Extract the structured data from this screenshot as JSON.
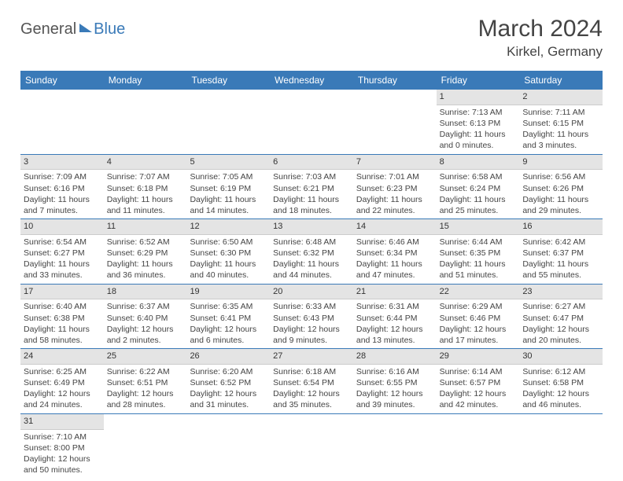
{
  "logo": {
    "text1": "General",
    "text2": "Blue"
  },
  "title": "March 2024",
  "location": "Kirkel, Germany",
  "theme": {
    "header_bg": "#3a7ab8",
    "header_text": "#ffffff",
    "daynum_bg": "#e4e4e4",
    "text": "#444444",
    "border": "#3a7ab8"
  },
  "day_labels": [
    "Sunday",
    "Monday",
    "Tuesday",
    "Wednesday",
    "Thursday",
    "Friday",
    "Saturday"
  ],
  "weeks": [
    [
      null,
      null,
      null,
      null,
      null,
      {
        "n": "1",
        "sr": "Sunrise: 7:13 AM",
        "ss": "Sunset: 6:13 PM",
        "dl": "Daylight: 11 hours and 0 minutes."
      },
      {
        "n": "2",
        "sr": "Sunrise: 7:11 AM",
        "ss": "Sunset: 6:15 PM",
        "dl": "Daylight: 11 hours and 3 minutes."
      }
    ],
    [
      {
        "n": "3",
        "sr": "Sunrise: 7:09 AM",
        "ss": "Sunset: 6:16 PM",
        "dl": "Daylight: 11 hours and 7 minutes."
      },
      {
        "n": "4",
        "sr": "Sunrise: 7:07 AM",
        "ss": "Sunset: 6:18 PM",
        "dl": "Daylight: 11 hours and 11 minutes."
      },
      {
        "n": "5",
        "sr": "Sunrise: 7:05 AM",
        "ss": "Sunset: 6:19 PM",
        "dl": "Daylight: 11 hours and 14 minutes."
      },
      {
        "n": "6",
        "sr": "Sunrise: 7:03 AM",
        "ss": "Sunset: 6:21 PM",
        "dl": "Daylight: 11 hours and 18 minutes."
      },
      {
        "n": "7",
        "sr": "Sunrise: 7:01 AM",
        "ss": "Sunset: 6:23 PM",
        "dl": "Daylight: 11 hours and 22 minutes."
      },
      {
        "n": "8",
        "sr": "Sunrise: 6:58 AM",
        "ss": "Sunset: 6:24 PM",
        "dl": "Daylight: 11 hours and 25 minutes."
      },
      {
        "n": "9",
        "sr": "Sunrise: 6:56 AM",
        "ss": "Sunset: 6:26 PM",
        "dl": "Daylight: 11 hours and 29 minutes."
      }
    ],
    [
      {
        "n": "10",
        "sr": "Sunrise: 6:54 AM",
        "ss": "Sunset: 6:27 PM",
        "dl": "Daylight: 11 hours and 33 minutes."
      },
      {
        "n": "11",
        "sr": "Sunrise: 6:52 AM",
        "ss": "Sunset: 6:29 PM",
        "dl": "Daylight: 11 hours and 36 minutes."
      },
      {
        "n": "12",
        "sr": "Sunrise: 6:50 AM",
        "ss": "Sunset: 6:30 PM",
        "dl": "Daylight: 11 hours and 40 minutes."
      },
      {
        "n": "13",
        "sr": "Sunrise: 6:48 AM",
        "ss": "Sunset: 6:32 PM",
        "dl": "Daylight: 11 hours and 44 minutes."
      },
      {
        "n": "14",
        "sr": "Sunrise: 6:46 AM",
        "ss": "Sunset: 6:34 PM",
        "dl": "Daylight: 11 hours and 47 minutes."
      },
      {
        "n": "15",
        "sr": "Sunrise: 6:44 AM",
        "ss": "Sunset: 6:35 PM",
        "dl": "Daylight: 11 hours and 51 minutes."
      },
      {
        "n": "16",
        "sr": "Sunrise: 6:42 AM",
        "ss": "Sunset: 6:37 PM",
        "dl": "Daylight: 11 hours and 55 minutes."
      }
    ],
    [
      {
        "n": "17",
        "sr": "Sunrise: 6:40 AM",
        "ss": "Sunset: 6:38 PM",
        "dl": "Daylight: 11 hours and 58 minutes."
      },
      {
        "n": "18",
        "sr": "Sunrise: 6:37 AM",
        "ss": "Sunset: 6:40 PM",
        "dl": "Daylight: 12 hours and 2 minutes."
      },
      {
        "n": "19",
        "sr": "Sunrise: 6:35 AM",
        "ss": "Sunset: 6:41 PM",
        "dl": "Daylight: 12 hours and 6 minutes."
      },
      {
        "n": "20",
        "sr": "Sunrise: 6:33 AM",
        "ss": "Sunset: 6:43 PM",
        "dl": "Daylight: 12 hours and 9 minutes."
      },
      {
        "n": "21",
        "sr": "Sunrise: 6:31 AM",
        "ss": "Sunset: 6:44 PM",
        "dl": "Daylight: 12 hours and 13 minutes."
      },
      {
        "n": "22",
        "sr": "Sunrise: 6:29 AM",
        "ss": "Sunset: 6:46 PM",
        "dl": "Daylight: 12 hours and 17 minutes."
      },
      {
        "n": "23",
        "sr": "Sunrise: 6:27 AM",
        "ss": "Sunset: 6:47 PM",
        "dl": "Daylight: 12 hours and 20 minutes."
      }
    ],
    [
      {
        "n": "24",
        "sr": "Sunrise: 6:25 AM",
        "ss": "Sunset: 6:49 PM",
        "dl": "Daylight: 12 hours and 24 minutes."
      },
      {
        "n": "25",
        "sr": "Sunrise: 6:22 AM",
        "ss": "Sunset: 6:51 PM",
        "dl": "Daylight: 12 hours and 28 minutes."
      },
      {
        "n": "26",
        "sr": "Sunrise: 6:20 AM",
        "ss": "Sunset: 6:52 PM",
        "dl": "Daylight: 12 hours and 31 minutes."
      },
      {
        "n": "27",
        "sr": "Sunrise: 6:18 AM",
        "ss": "Sunset: 6:54 PM",
        "dl": "Daylight: 12 hours and 35 minutes."
      },
      {
        "n": "28",
        "sr": "Sunrise: 6:16 AM",
        "ss": "Sunset: 6:55 PM",
        "dl": "Daylight: 12 hours and 39 minutes."
      },
      {
        "n": "29",
        "sr": "Sunrise: 6:14 AM",
        "ss": "Sunset: 6:57 PM",
        "dl": "Daylight: 12 hours and 42 minutes."
      },
      {
        "n": "30",
        "sr": "Sunrise: 6:12 AM",
        "ss": "Sunset: 6:58 PM",
        "dl": "Daylight: 12 hours and 46 minutes."
      }
    ],
    [
      {
        "n": "31",
        "sr": "Sunrise: 7:10 AM",
        "ss": "Sunset: 8:00 PM",
        "dl": "Daylight: 12 hours and 50 minutes."
      },
      null,
      null,
      null,
      null,
      null,
      null
    ]
  ]
}
